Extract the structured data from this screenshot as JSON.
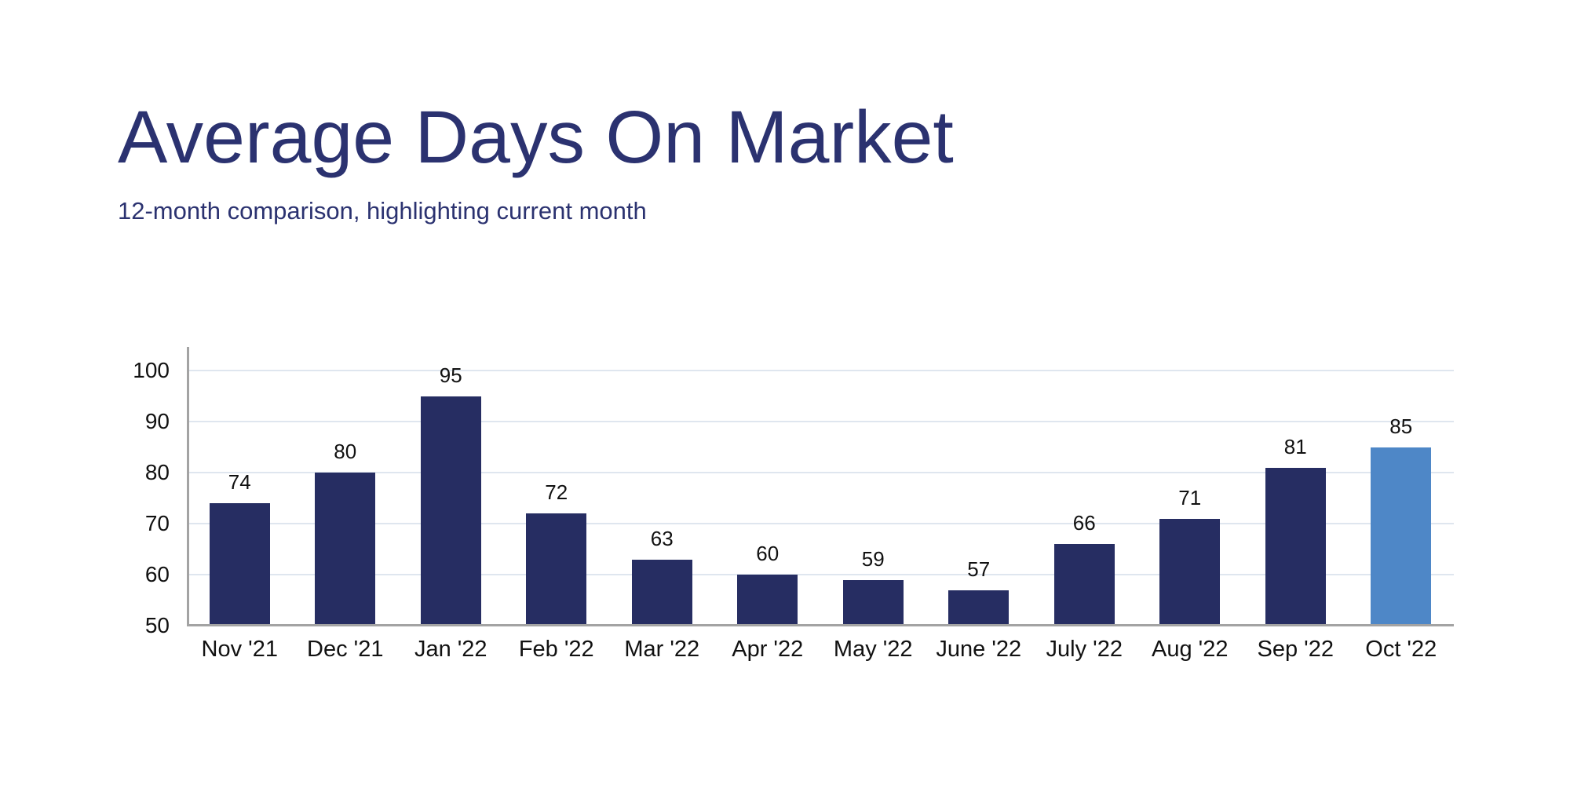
{
  "page": {
    "background_color": "#ffffff"
  },
  "header": {
    "title": "Average Days On Market",
    "subtitle": "12-month comparison, highlighting current month"
  },
  "chart_data": {
    "type": "bar",
    "title": "Average Days On Market",
    "subtitle": "12-month comparison, highlighting current month",
    "categories": [
      "Nov '21",
      "Dec '21",
      "Jan '22",
      "Feb '22",
      "Mar '22",
      "Apr '22",
      "May '22",
      "June '22",
      "July '22",
      "Aug '22",
      "Sep '22",
      "Oct '22"
    ],
    "values": [
      74,
      80,
      95,
      72,
      63,
      60,
      59,
      57,
      66,
      71,
      81,
      85
    ],
    "value_labels": [
      "74",
      "80",
      "95",
      "72",
      "63",
      "60",
      "59",
      "57",
      "66",
      "71",
      "81",
      "85"
    ],
    "highlight_index": 11,
    "highlight_category": "Oct '22",
    "xlabel": "",
    "ylabel": "",
    "ylim": [
      50,
      100
    ],
    "yticks": [
      50,
      60,
      70,
      80,
      90,
      100
    ],
    "grid": true,
    "legend_position": "none",
    "colors": {
      "title": "#2b3270",
      "bar": "#262d62",
      "highlight_bar": "#4e87c7",
      "gridline": "#dfe6ef",
      "axis": "#a3a3a3",
      "label": "#111111"
    }
  }
}
